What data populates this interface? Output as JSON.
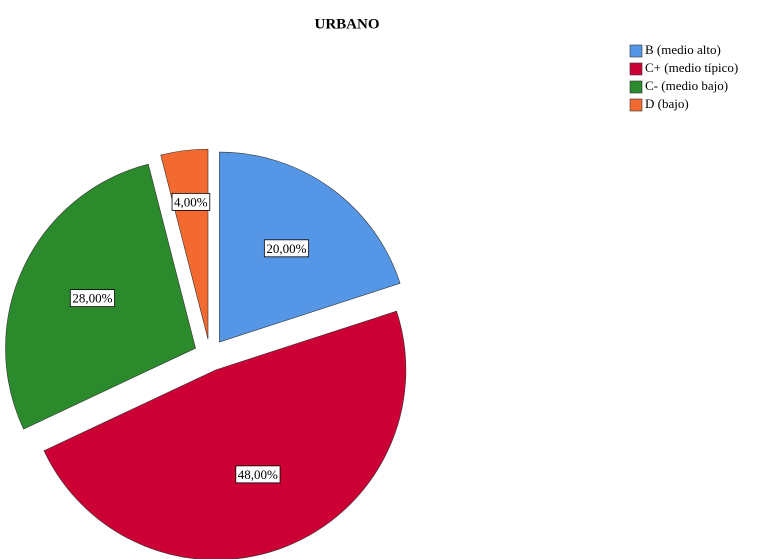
{
  "chart_data": {
    "type": "pie",
    "title": "URBANO",
    "categories": [
      "B (medio alto)",
      "C+ (medio típico)",
      "C- (medio bajo)",
      "D (bajo)"
    ],
    "values": [
      20,
      48,
      28,
      4
    ],
    "value_labels": [
      "20,00%",
      "48,00%",
      "28,00%",
      "4,00%"
    ],
    "colors": [
      "#5596e6",
      "#cc0035",
      "#2b8a2b",
      "#f26a30"
    ],
    "legend": "top-right"
  }
}
